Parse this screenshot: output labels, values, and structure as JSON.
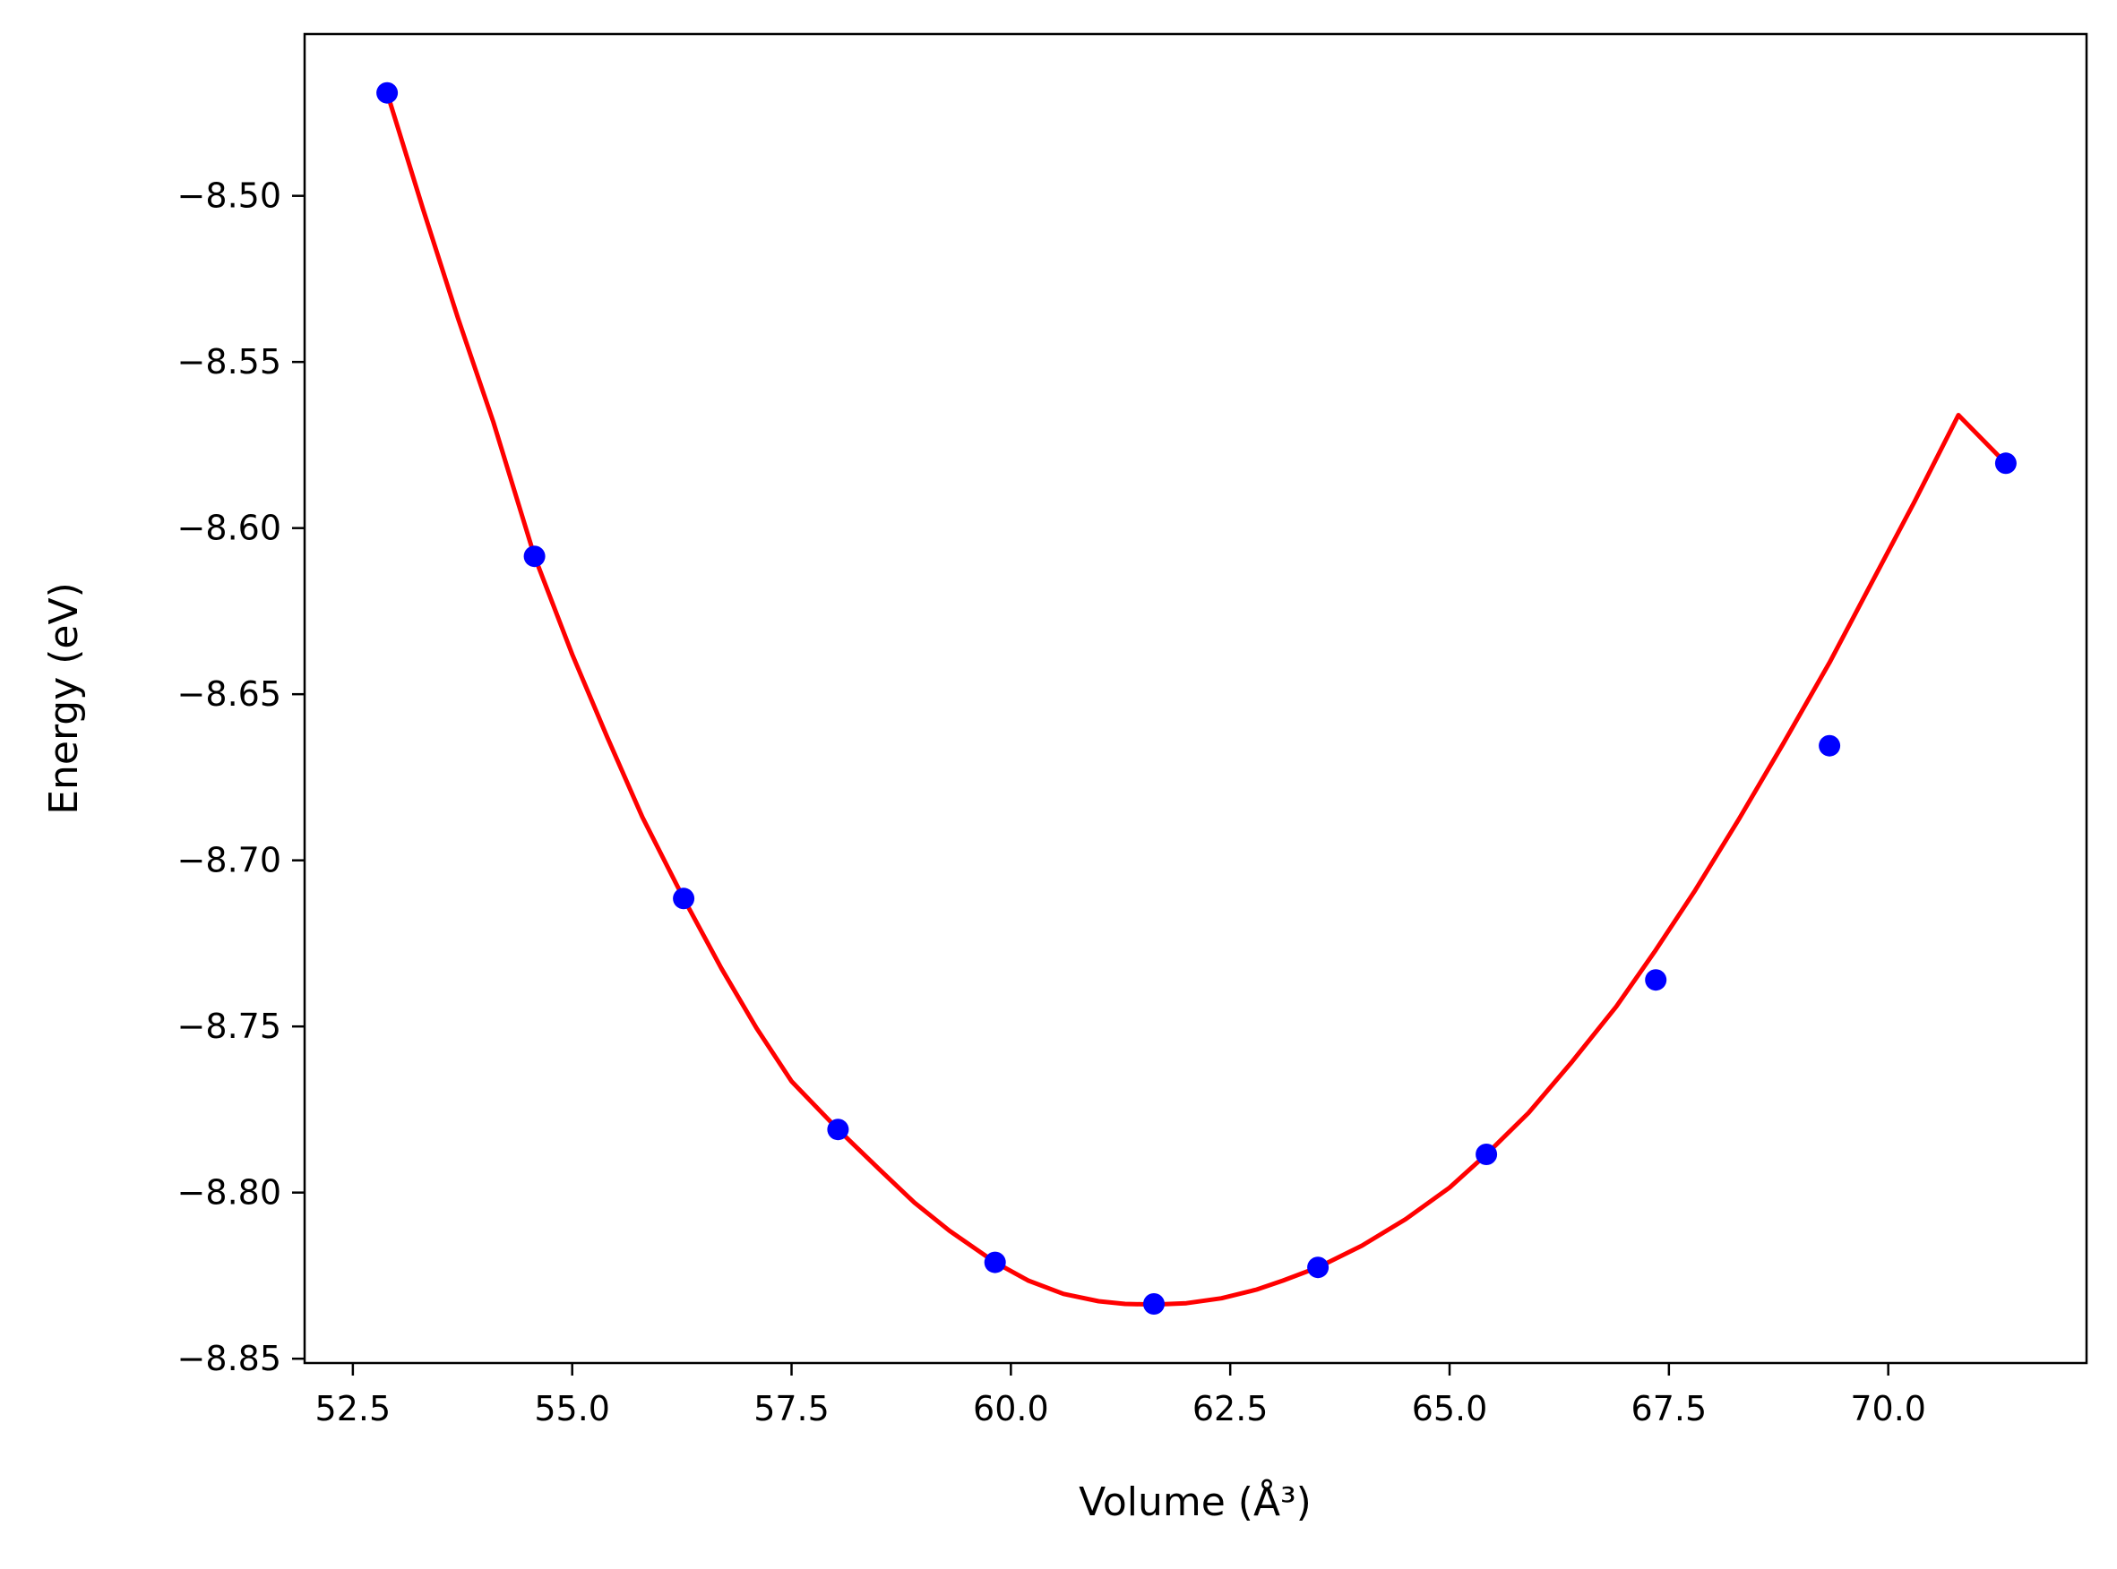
{
  "chart_data": {
    "type": "line",
    "title": "",
    "xlabel": "Volume (Å³)",
    "ylabel": "Energy (eV)",
    "xlim": [
      51.95,
      72.26
    ],
    "ylim": [
      -8.8513,
      -8.4513
    ],
    "xticks": [
      52.5,
      55.0,
      57.5,
      60.0,
      62.5,
      65.0,
      67.5,
      70.0
    ],
    "xtick_labels": [
      "52.5",
      "55.0",
      "57.5",
      "60.0",
      "62.5",
      "65.0",
      "67.5",
      "70.0"
    ],
    "yticks": [
      -8.5,
      -8.55,
      -8.6,
      -8.65,
      -8.7,
      -8.75,
      -8.8,
      -8.85
    ],
    "ytick_labels": [
      "−8.50",
      "−8.55",
      "−8.60",
      "−8.65",
      "−8.70",
      "−8.75",
      "−8.80",
      "−8.85"
    ],
    "grid": false,
    "series": [
      {
        "kind": "scatter",
        "color": "#0000ff",
        "x": [
          52.89,
          54.57,
          56.27,
          58.03,
          59.82,
          61.63,
          63.5,
          65.42,
          67.35,
          69.33,
          71.34
        ],
        "y": [
          -8.469,
          -8.6085,
          -8.7115,
          -8.781,
          -8.821,
          -8.8335,
          -8.8225,
          -8.7885,
          -8.736,
          -8.6655,
          -8.5805
        ]
      },
      {
        "kind": "line",
        "color": "#ff0000",
        "x": [
          52.89,
          53.3,
          53.7,
          54.1,
          54.57,
          55.0,
          55.4,
          55.8,
          56.27,
          56.7,
          57.1,
          57.5,
          58.03,
          58.5,
          58.9,
          59.3,
          59.82,
          60.2,
          60.6,
          61.0,
          61.3,
          61.63,
          62.0,
          62.4,
          62.8,
          63.1,
          63.5,
          64.0,
          64.5,
          65.0,
          65.42,
          65.9,
          66.4,
          66.9,
          67.35,
          67.8,
          68.3,
          68.8,
          69.33,
          69.8,
          70.3,
          70.8,
          71.34
        ],
        "y": [
          -8.469,
          -8.504,
          -8.537,
          -8.568,
          -8.6085,
          -8.638,
          -8.663,
          -8.687,
          -8.7115,
          -8.7325,
          -8.7505,
          -8.7665,
          -8.781,
          -8.793,
          -8.803,
          -8.8115,
          -8.821,
          -8.8265,
          -8.8305,
          -8.8327,
          -8.8335,
          -8.8337,
          -8.8333,
          -8.8318,
          -8.8292,
          -8.8265,
          -8.8225,
          -8.816,
          -8.808,
          -8.7985,
          -8.7885,
          -8.776,
          -8.7605,
          -8.744,
          -8.727,
          -8.709,
          -8.6875,
          -8.665,
          -8.6405,
          -8.617,
          -8.592,
          -8.566,
          -8.5805
        ]
      }
    ]
  }
}
